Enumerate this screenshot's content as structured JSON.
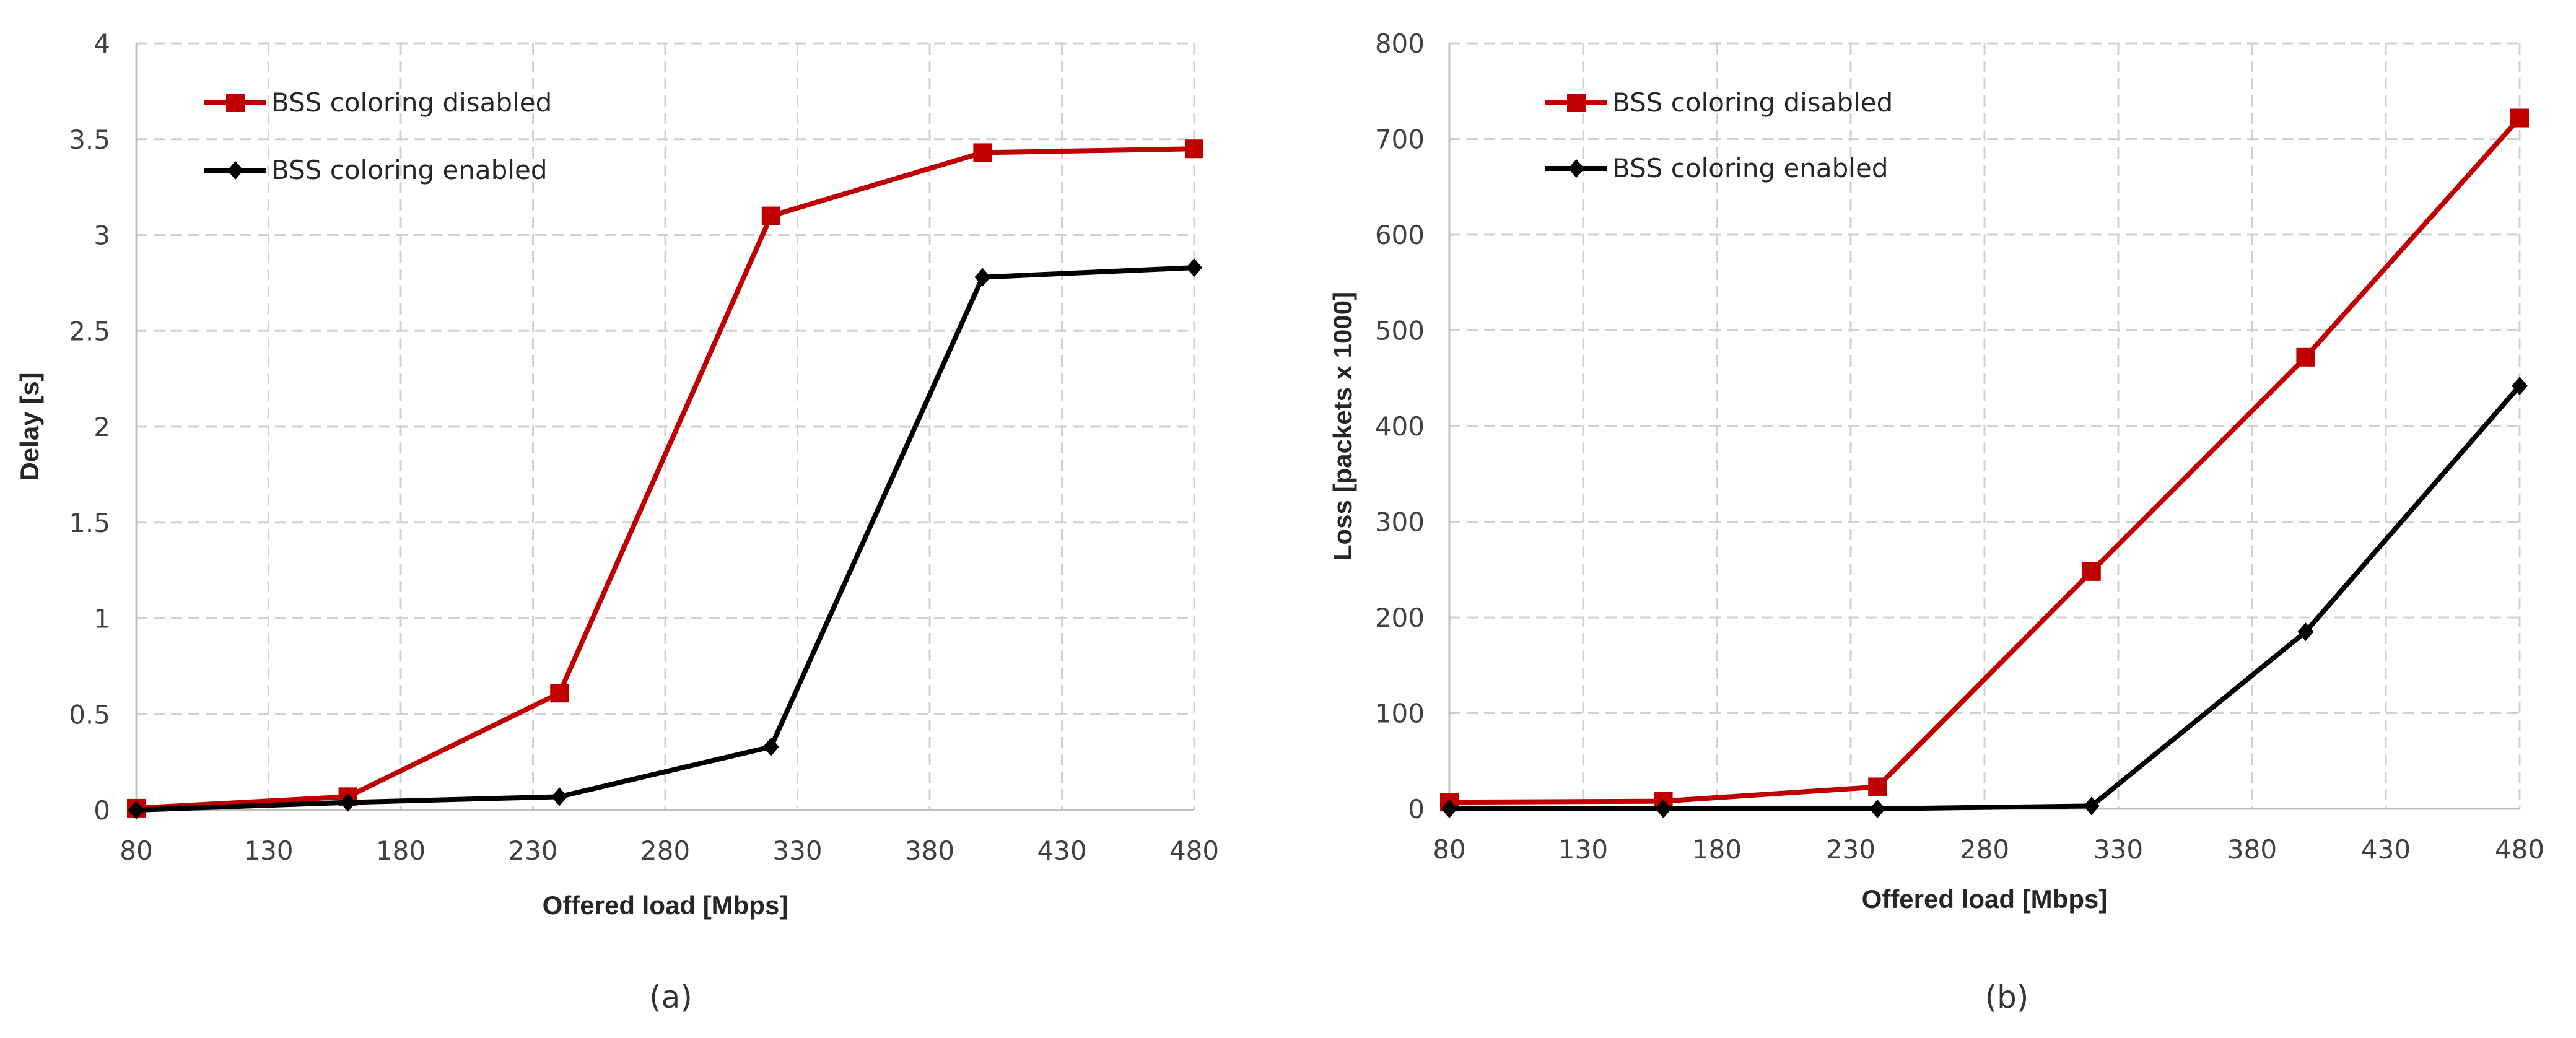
{
  "colors": {
    "disabled": "#c00000",
    "enabled": "#000000"
  },
  "chart_data": [
    {
      "type": "line",
      "caption": "(a)",
      "xlabel": "Offered load [Mbps]",
      "ylabel": "Delay [s]",
      "xlim": [
        80,
        480
      ],
      "ylim": [
        0,
        4
      ],
      "x_ticks": [
        80,
        130,
        180,
        230,
        280,
        330,
        380,
        430,
        480
      ],
      "y_ticks": [
        0,
        0.5,
        1,
        1.5,
        2,
        2.5,
        3,
        3.5,
        4
      ],
      "grid": true,
      "legend_position": "top-left",
      "x": [
        80,
        160,
        240,
        320,
        400,
        480
      ],
      "series": [
        {
          "name": "BSS coloring disabled",
          "color_key": "disabled",
          "marker": "square",
          "values": [
            0.01,
            0.07,
            0.61,
            3.1,
            3.43,
            3.45
          ]
        },
        {
          "name": "BSS coloring enabled",
          "color_key": "enabled",
          "marker": "diamond",
          "values": [
            0.0,
            0.04,
            0.07,
            0.33,
            2.78,
            2.83
          ]
        }
      ]
    },
    {
      "type": "line",
      "caption": "(b)",
      "xlabel": "Offered load [Mbps]",
      "ylabel": "Loss [packets x 1000]",
      "xlim": [
        80,
        480
      ],
      "ylim": [
        0,
        800
      ],
      "x_ticks": [
        80,
        130,
        180,
        230,
        280,
        330,
        380,
        430,
        480
      ],
      "y_ticks": [
        0,
        100,
        200,
        300,
        400,
        500,
        600,
        700,
        800
      ],
      "grid": true,
      "legend_position": "top-left",
      "x": [
        80,
        160,
        240,
        320,
        400,
        480
      ],
      "series": [
        {
          "name": "BSS coloring disabled",
          "color_key": "disabled",
          "marker": "square",
          "values": [
            7,
            8,
            23,
            248,
            472,
            722
          ]
        },
        {
          "name": "BSS coloring enabled",
          "color_key": "enabled",
          "marker": "diamond",
          "values": [
            0,
            0,
            0,
            3,
            185,
            442
          ]
        }
      ]
    }
  ]
}
